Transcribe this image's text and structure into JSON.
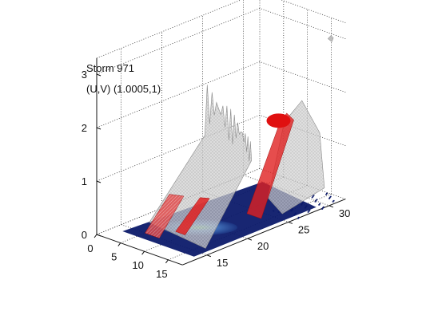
{
  "chart_data": {
    "type": "3d-isosurface",
    "title": "Storm 971",
    "subtitle": "(U,V) (1.0005,1)",
    "xlabel": "",
    "ylabel": "",
    "zlabel": "",
    "x_ticks": [
      0,
      5,
      10,
      15
    ],
    "y_ticks": [
      15,
      20,
      25,
      30
    ],
    "z_ticks": [
      0,
      1,
      2,
      3
    ],
    "xlim": [
      0,
      18
    ],
    "ylim": [
      12,
      32
    ],
    "zlim": [
      0,
      3.3
    ],
    "grid": true,
    "colors": {
      "outer_surface": "#c8c8c8",
      "core_surface": "#e02020",
      "ground_field": "#0c1a6a",
      "ground_mid": "#4a80c8",
      "ground_high": "#6cc38a"
    },
    "blobs": [
      {
        "layer": "outer",
        "x": [
          2.5,
          16
        ],
        "y": [
          16,
          28
        ],
        "z_top": 2.2
      },
      {
        "layer": "core",
        "x": [
          11,
          14
        ],
        "y": [
          24,
          28
        ],
        "z_top": 1.6
      },
      {
        "layer": "core",
        "x": [
          5,
          8
        ],
        "y": [
          15,
          18
        ],
        "z_top": 0.6
      },
      {
        "layer": "core",
        "x": [
          8,
          10
        ],
        "y": [
          17,
          20
        ],
        "z_top": 0.5
      }
    ]
  }
}
